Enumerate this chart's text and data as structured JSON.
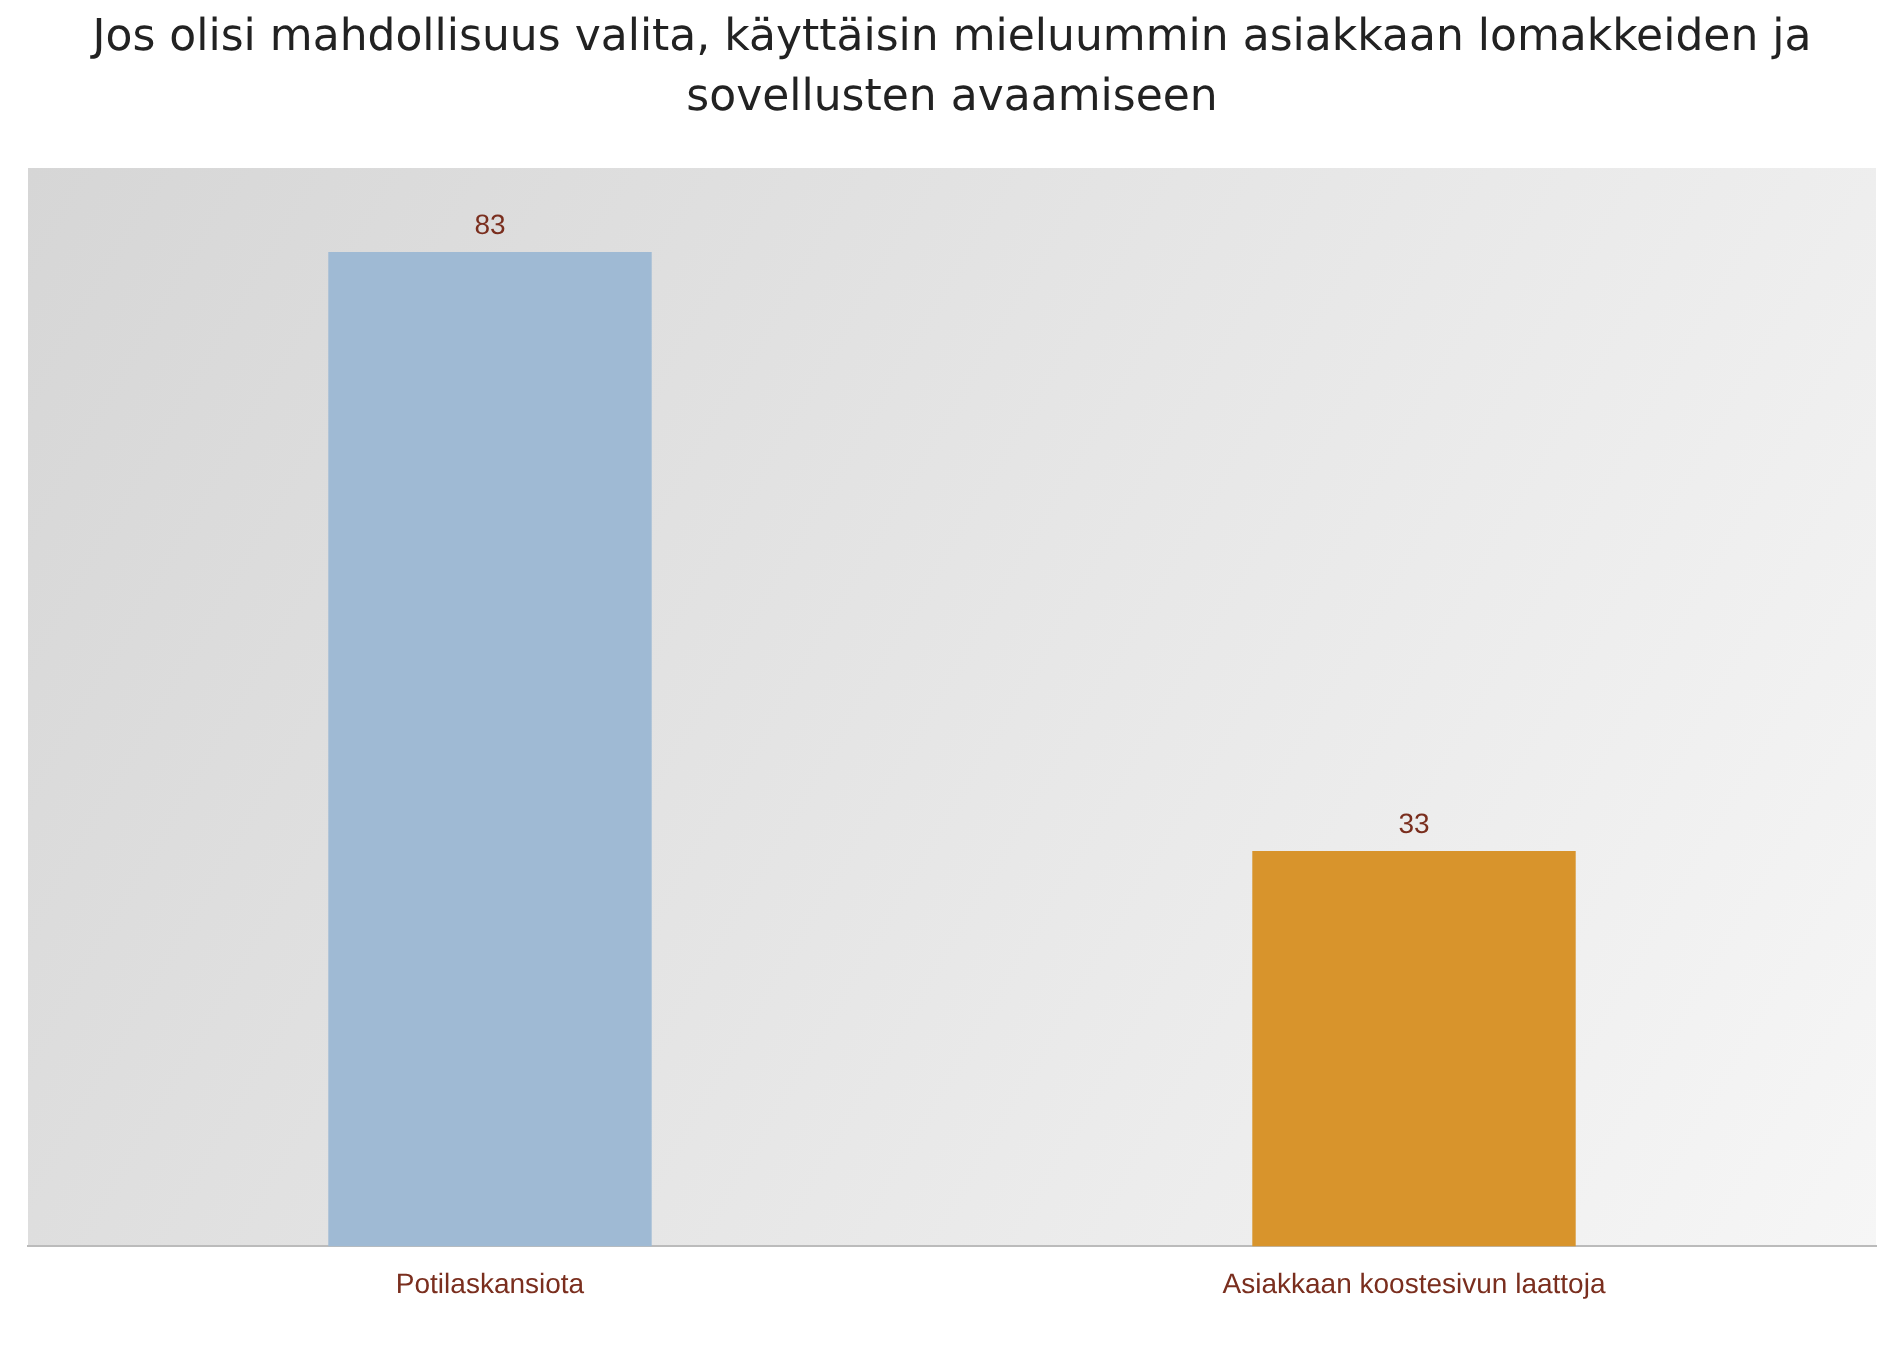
{
  "chart_data": {
    "type": "bar",
    "title": "Jos olisi mahdollisuus valita, käyttäisin mieluummin asiakkaan lomakkeiden ja sovellusten avaamiseen",
    "categories": [
      "Potilaskansiota",
      "Asiakkaan koostesivun laattoja"
    ],
    "values": [
      83,
      33
    ],
    "colors": [
      "#9fbad4",
      "#d8942c"
    ],
    "data_labels": true,
    "legend": false,
    "grid": false
  }
}
